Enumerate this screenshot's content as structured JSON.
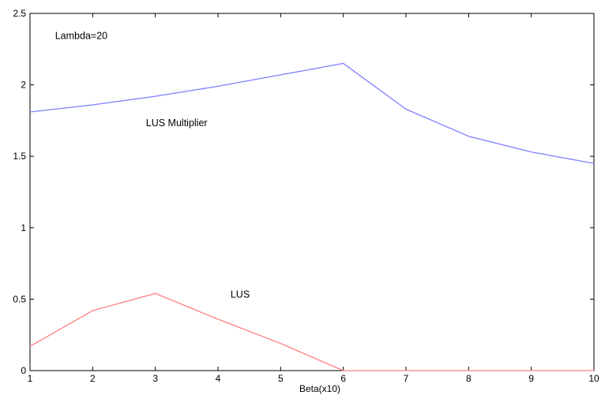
{
  "chart_data": {
    "type": "line",
    "title": "",
    "xlabel": "Beta(x10)",
    "ylabel": "",
    "xlim": [
      1,
      10
    ],
    "ylim": [
      0,
      2.5
    ],
    "xticks": [
      "1",
      "2",
      "3",
      "4",
      "5",
      "6",
      "7",
      "8",
      "9",
      "10"
    ],
    "yticks": [
      "0",
      "0.5",
      "1",
      "1.5",
      "2",
      "2.5"
    ],
    "grid": false,
    "legend": "none",
    "x": [
      1,
      2,
      3,
      4,
      5,
      6,
      7,
      8,
      9,
      10
    ],
    "series": [
      {
        "color": "#7f7fff",
        "values": [
          1.81,
          1.86,
          1.92,
          1.99,
          2.07,
          2.15,
          1.83,
          1.64,
          1.53,
          1.45
        ]
      },
      {
        "color": "#ff7f7f",
        "values": [
          0.17,
          0.42,
          0.54,
          0.36,
          0.19,
          0.0,
          0.0,
          0.0,
          0.0,
          0.0
        ]
      }
    ],
    "annotations": [
      {
        "text": "Lambda=20",
        "x": 1.4,
        "y": 2.32
      },
      {
        "text": "LUS Multiplier",
        "x": 2.85,
        "y": 1.71
      },
      {
        "text": "LUS",
        "x": 4.2,
        "y": 0.51
      }
    ]
  }
}
